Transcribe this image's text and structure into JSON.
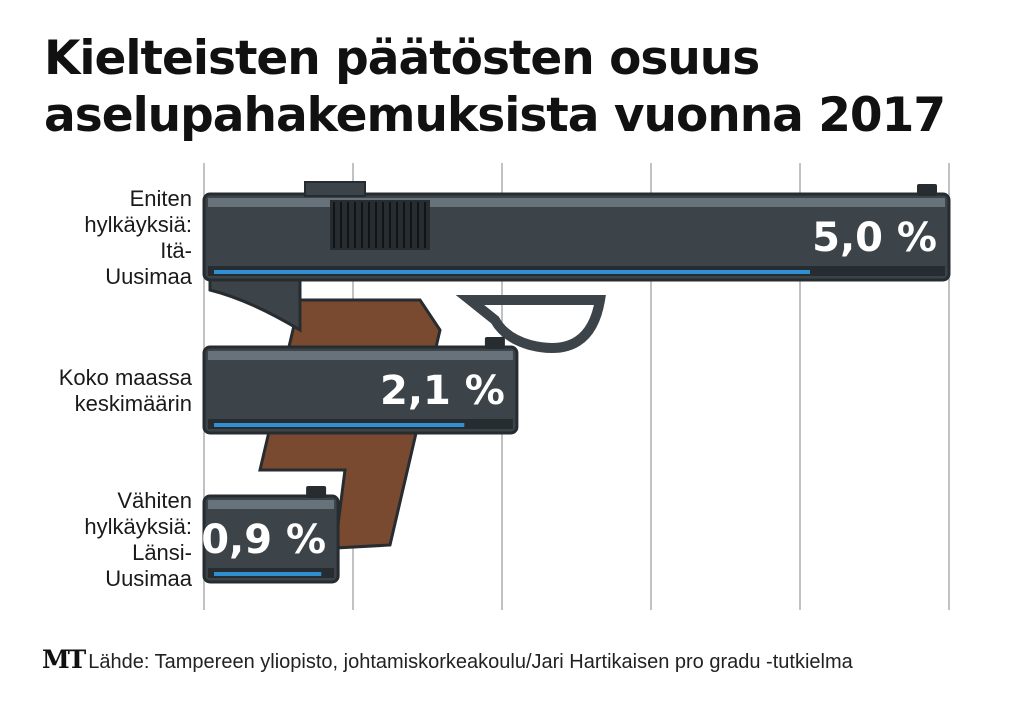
{
  "title_line1": "Kielteisten päätösten osuus",
  "title_line2": "aselupahakemuksista vuonna 2017",
  "footer": {
    "logo": "MT",
    "source": "Lähde: Tampereen yliopisto, johtamiskorkeakoulu/Jari Hartikaisen pro gradu -tutkielma"
  },
  "colors": {
    "gun_body": "#3c4449",
    "gun_dark": "#262c30",
    "gun_light": "#68727a",
    "grip": "#7a4a30",
    "accent_blue": "#2f8fd0",
    "grid": "#9a9a9a"
  },
  "chart_data": {
    "type": "bar",
    "orientation": "horizontal",
    "title": "Kielteisten päätösten osuus aselupahakemuksista vuonna 2017",
    "xlim": [
      0,
      5
    ],
    "grid": true,
    "categories": [
      {
        "lines": [
          "Eniten",
          "hylkäyksiä:",
          "Itä-",
          "Uusimaa"
        ]
      },
      {
        "lines": [
          "Koko maassa",
          "keskimäärin"
        ]
      },
      {
        "lines": [
          "Vähiten",
          "hylkäyksiä:",
          "Länsi-",
          "Uusimaa"
        ]
      }
    ],
    "values": [
      5.0,
      2.1,
      0.9
    ],
    "value_labels": [
      "5,0 %",
      "2,1 %",
      "0,9 %"
    ]
  }
}
